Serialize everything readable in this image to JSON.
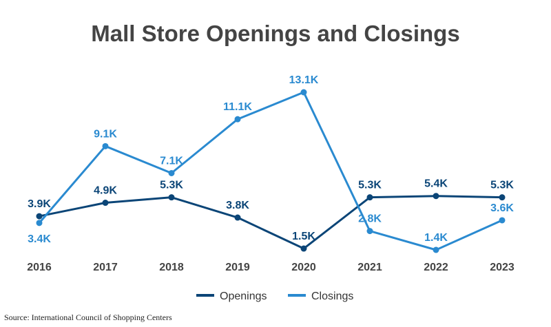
{
  "chart_data": {
    "type": "line",
    "title": "Mall Store Openings and Closings",
    "xlabel": "",
    "ylabel": "",
    "categories": [
      "2016",
      "2017",
      "2018",
      "2019",
      "2020",
      "2021",
      "2022",
      "2023"
    ],
    "series": [
      {
        "name": "Openings",
        "color": "#0b4577",
        "values": [
          3.9,
          4.9,
          5.3,
          3.8,
          1.5,
          5.3,
          5.4,
          5.3
        ],
        "labels": [
          "3.9K",
          "4.9K",
          "5.3K",
          "3.8K",
          "1.5K",
          "5.3K",
          "5.4K",
          "5.3K"
        ]
      },
      {
        "name": "Closings",
        "color": "#2a8ad0",
        "values": [
          3.4,
          9.1,
          7.1,
          11.1,
          13.1,
          2.8,
          1.4,
          3.6
        ],
        "labels": [
          "3.4K",
          "9.1K",
          "7.1K",
          "11.1K",
          "13.1K",
          "2.8K",
          "1.4K",
          "3.6K"
        ]
      }
    ],
    "ylim": [
      0,
      14
    ],
    "grid": false,
    "legend": "bottom-center",
    "unit": "thousands of stores"
  },
  "source": "Source: International Council of Shopping Centers"
}
